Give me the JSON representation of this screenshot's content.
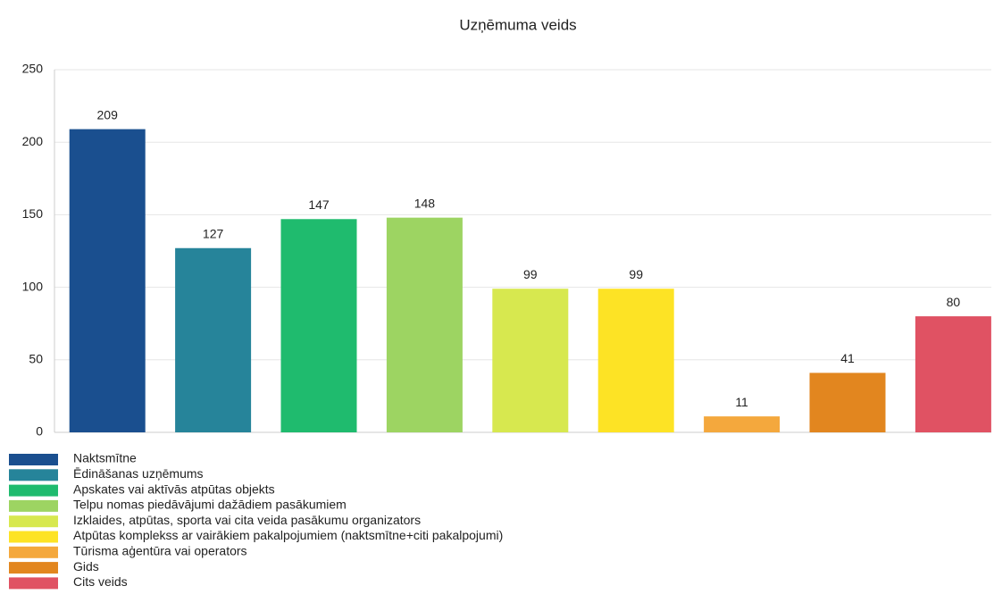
{
  "chart_data": {
    "type": "bar",
    "title": "Uzņēmuma veids",
    "categories": [
      "Naktsmītne",
      "Ēdināšanas uzņēmums",
      "Apskates vai aktīvās atpūtas objekts",
      "Telpu nomas piedāvājumi dažādiem pasākumiem",
      "Izklaides, atpūtas, sporta vai cita veida pasākumu organizators",
      "Atpūtas komplekss ar vairākiem pakalpojumiem (naktsmītne+citi pakalpojumi)",
      "Tūrisma aģentūra vai operators",
      "Gids",
      "Cits veids"
    ],
    "values": [
      209,
      127,
      147,
      148,
      99,
      99,
      11,
      41,
      80
    ],
    "colors": [
      "#1a4f8f",
      "#26849a",
      "#1fbb6e",
      "#9dd462",
      "#d7e84f",
      "#fde325",
      "#f4a83d",
      "#e2861f",
      "#e05263"
    ],
    "ylim": [
      0,
      250
    ],
    "yticks": [
      0,
      50,
      100,
      150,
      200,
      250
    ],
    "grid": true,
    "legend": "bottom-left"
  }
}
